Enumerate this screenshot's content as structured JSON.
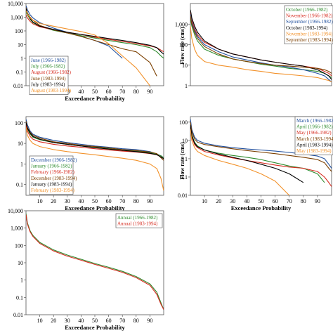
{
  "chart_data": [
    {
      "type": "line",
      "panel": "summer",
      "ylabel": "",
      "xlabel": "Exceedance Probability",
      "x": [
        0,
        1,
        3,
        5,
        10,
        20,
        30,
        40,
        50,
        60,
        70,
        80,
        90,
        95,
        98,
        100
      ],
      "xticks": [
        10,
        20,
        30,
        40,
        50,
        60,
        70,
        80,
        90
      ],
      "yticks": [
        0.01,
        0.1,
        1,
        10,
        100,
        "1,000",
        "10,000"
      ],
      "ylim": [
        0.01,
        10000
      ],
      "yscale": "log",
      "legend_loc": "bottom-left",
      "series": [
        {
          "name": "June (1966-1982)",
          "color": "#1f4e9c",
          "values": [
            7000,
            3500,
            1500,
            900,
            400,
            160,
            80,
            40,
            20,
            8,
            1,
            null,
            null,
            null,
            null,
            null
          ]
        },
        {
          "name": "July (1966-1982)",
          "color": "#2e8b2e",
          "values": [
            2500,
            1500,
            700,
            400,
            220,
            110,
            70,
            45,
            30,
            20,
            14,
            10,
            6,
            3,
            1.5,
            1
          ]
        },
        {
          "name": "August (1966-1982)",
          "color": "#d62b1f",
          "values": [
            1500,
            900,
            500,
            330,
            200,
            120,
            80,
            55,
            35,
            24,
            17,
            12,
            8,
            6,
            4,
            3
          ]
        },
        {
          "name": "June (1983-1994)",
          "color": "#7b3f00",
          "values": [
            5000,
            2000,
            1000,
            600,
            250,
            120,
            70,
            40,
            20,
            10,
            5,
            3,
            0.5,
            0.05,
            null,
            null
          ]
        },
        {
          "name": "July (1983-1994)",
          "color": "#000000",
          "values": [
            4000,
            2000,
            800,
            450,
            220,
            130,
            80,
            55,
            40,
            28,
            20,
            14,
            9,
            6,
            3,
            2
          ]
        },
        {
          "name": "August (1983-1994)",
          "color": "#f2922b",
          "values": [
            3000,
            1800,
            900,
            600,
            350,
            220,
            140,
            90,
            50,
            12,
            1.5,
            0.2,
            0.01,
            null,
            null,
            null
          ]
        }
      ]
    },
    {
      "type": "line",
      "panel": "autumn",
      "ylabel": "Flow rate (cms)",
      "xlabel": "",
      "x": [
        0,
        1,
        3,
        5,
        10,
        20,
        30,
        40,
        50,
        60,
        70,
        80,
        90,
        95,
        98,
        100
      ],
      "xticks": [],
      "yticks": [
        1,
        10,
        100,
        "1,000"
      ],
      "ylim": [
        1,
        10000
      ],
      "yscale": "log",
      "legend_loc": "top-right",
      "series": [
        {
          "name": "October (1966-1982)",
          "color": "#2e8b2e",
          "values": [
            2000,
            800,
            300,
            150,
            60,
            30,
            20,
            15,
            11,
            9,
            7,
            6,
            5,
            4,
            3,
            2.5
          ]
        },
        {
          "name": "November (1966-1982)",
          "color": "#d62b1f",
          "values": [
            4000,
            1500,
            600,
            300,
            130,
            60,
            35,
            25,
            18,
            14,
            11,
            9,
            7,
            5,
            4,
            3
          ]
        },
        {
          "name": "September (1966-1982)",
          "color": "#1f4e9c",
          "values": [
            3000,
            1200,
            500,
            250,
            100,
            45,
            25,
            18,
            13,
            10,
            8,
            6,
            4,
            3,
            2,
            1.5
          ]
        },
        {
          "name": "October (1983-1994)",
          "color": "#000000",
          "values": [
            5000,
            2000,
            800,
            400,
            150,
            60,
            35,
            25,
            18,
            14,
            11,
            9,
            6,
            4,
            3,
            2
          ]
        },
        {
          "name": "November (1983-1994)",
          "color": "#f2922b",
          "values": [
            800,
            200,
            60,
            30,
            15,
            10,
            8,
            6,
            5,
            4,
            3.5,
            3,
            2.5,
            2,
            1.8,
            1.5
          ]
        },
        {
          "name": "September (1983-1994)",
          "color": "#7b3f00",
          "values": [
            2500,
            1000,
            400,
            200,
            80,
            35,
            20,
            15,
            12,
            10,
            9,
            8,
            7,
            6,
            5,
            4
          ]
        }
      ]
    },
    {
      "type": "line",
      "panel": "winter",
      "ylabel": "",
      "xlabel": "Exceedance Probability",
      "x": [
        0,
        1,
        3,
        5,
        10,
        20,
        30,
        40,
        50,
        60,
        70,
        80,
        90,
        95,
        98,
        100
      ],
      "xticks": [
        10,
        20,
        30,
        40,
        50,
        60,
        70,
        80,
        90
      ],
      "yticks": [
        0.1,
        1,
        10,
        100
      ],
      "ylim": [
        0.03,
        200
      ],
      "yscale": "log",
      "legend_loc": "bottom-left",
      "series": [
        {
          "name": "December (1966-1982)",
          "color": "#1f4e9c",
          "values": [
            150,
            80,
            40,
            28,
            20,
            14,
            11,
            9,
            7.5,
            6.5,
            5.5,
            5,
            4,
            3,
            2.5,
            2
          ]
        },
        {
          "name": "January (1966-1982)",
          "color": "#2e8b2e",
          "values": [
            90,
            50,
            28,
            20,
            15,
            11,
            9,
            7.5,
            6.5,
            5.5,
            4.8,
            4.2,
            3.5,
            3,
            2.5,
            2
          ]
        },
        {
          "name": "February (1966-1982)",
          "color": "#d62b1f",
          "values": [
            80,
            40,
            22,
            16,
            12,
            9,
            7.5,
            6.5,
            5.5,
            4.8,
            4.2,
            3.8,
            3.2,
            2.8,
            2.2,
            1.8
          ]
        },
        {
          "name": "December (1983-1994)",
          "color": "#7b3f00",
          "values": [
            120,
            60,
            35,
            25,
            18,
            12,
            10,
            8,
            7,
            6,
            5,
            4.5,
            3.8,
            3.2,
            2,
            1.5
          ]
        },
        {
          "name": "January (1983-1994)",
          "color": "#000000",
          "values": [
            100,
            55,
            32,
            22,
            16,
            11,
            9,
            7.5,
            6.2,
            5.3,
            4.6,
            4,
            3.3,
            2.8,
            2.2,
            1.8
          ]
        },
        {
          "name": "February (1983-1994)",
          "color": "#f2922b",
          "values": [
            60,
            25,
            14,
            10,
            7,
            5,
            4,
            3.3,
            2.8,
            2.3,
            1.9,
            1.5,
            1,
            0.6,
            0.2,
            0.05
          ]
        }
      ]
    },
    {
      "type": "line",
      "panel": "spring",
      "ylabel": "Flow rate (cms)",
      "xlabel": "Exceedance Probability",
      "x": [
        0,
        1,
        3,
        5,
        10,
        20,
        30,
        40,
        50,
        60,
        70,
        80,
        90,
        95,
        98,
        100
      ],
      "xticks": [
        10,
        20,
        30,
        40,
        50,
        60,
        70,
        80,
        90
      ],
      "yticks": [
        0.01,
        0.1,
        1,
        10,
        100
      ],
      "ylim": [
        0.01,
        200
      ],
      "yscale": "log",
      "legend_loc": "top-right",
      "series": [
        {
          "name": "March (1966-1982)",
          "color": "#1f4e9c",
          "values": [
            150,
            40,
            15,
            10,
            7,
            5,
            4,
            3.4,
            3,
            2.6,
            2.2,
            1.8,
            1.4,
            1,
            0.5,
            0.3
          ]
        },
        {
          "name": "April (1966-1982)",
          "color": "#2e8b2e",
          "values": [
            80,
            20,
            8,
            5,
            3,
            2,
            1.5,
            1.2,
            0.9,
            0.6,
            0.4,
            0.3,
            0.15,
            0.05,
            null,
            null
          ]
        },
        {
          "name": "May (1966-1982)",
          "color": "#d62b1f",
          "values": [
            60,
            15,
            6,
            4,
            2.5,
            1.6,
            1.1,
            0.8,
            0.6,
            0.45,
            0.35,
            0.3,
            0.2,
            0.1,
            0.05,
            0.03
          ]
        },
        {
          "name": "March (1983-1994)",
          "color": "#7b3f00",
          "values": [
            100,
            30,
            12,
            8,
            6,
            4.5,
            3.5,
            2.8,
            2.3,
            1.9,
            1.5,
            1.2,
            0.9,
            0.6,
            0.3,
            0.2
          ]
        },
        {
          "name": "April (1983-1994)",
          "color": "#000000",
          "values": [
            70,
            18,
            7,
            4.5,
            3,
            1.8,
            1.2,
            0.8,
            0.5,
            0.3,
            0.15,
            0.05,
            null,
            null,
            null,
            null
          ]
        },
        {
          "name": "May (1983-1994)",
          "color": "#f2922b",
          "values": [
            40,
            10,
            4,
            2.5,
            1.5,
            0.8,
            0.5,
            0.3,
            0.15,
            0.06,
            0.01,
            null,
            null,
            null,
            null,
            null
          ]
        }
      ]
    },
    {
      "type": "line",
      "panel": "annual",
      "ylabel": "",
      "xlabel": "Exceedance Probability",
      "x": [
        0,
        1,
        3,
        5,
        10,
        20,
        30,
        40,
        50,
        60,
        70,
        80,
        90,
        95,
        98,
        100
      ],
      "xticks": [
        10,
        20,
        30,
        40,
        50,
        60,
        70,
        80,
        90
      ],
      "yticks": [
        0.01,
        0.1,
        1,
        10,
        100,
        "1,000",
        "10,000"
      ],
      "ylim": [
        0.01,
        10000
      ],
      "yscale": "log",
      "legend_loc": "top-right",
      "series": [
        {
          "name": "Annual (1966-1982)",
          "color": "#2e8b2e",
          "values": [
            7000,
            2000,
            700,
            380,
            150,
            55,
            28,
            16,
            9,
            5.5,
            3.2,
            1.6,
            0.6,
            0.2,
            0.05,
            0.02
          ]
        },
        {
          "name": "Annual (1983-1994)",
          "color": "#d62b1f",
          "values": [
            6000,
            1700,
            600,
            330,
            130,
            48,
            24,
            14,
            8,
            4.8,
            2.8,
            1.4,
            0.5,
            0.15,
            0.04,
            0.02
          ]
        }
      ]
    }
  ]
}
